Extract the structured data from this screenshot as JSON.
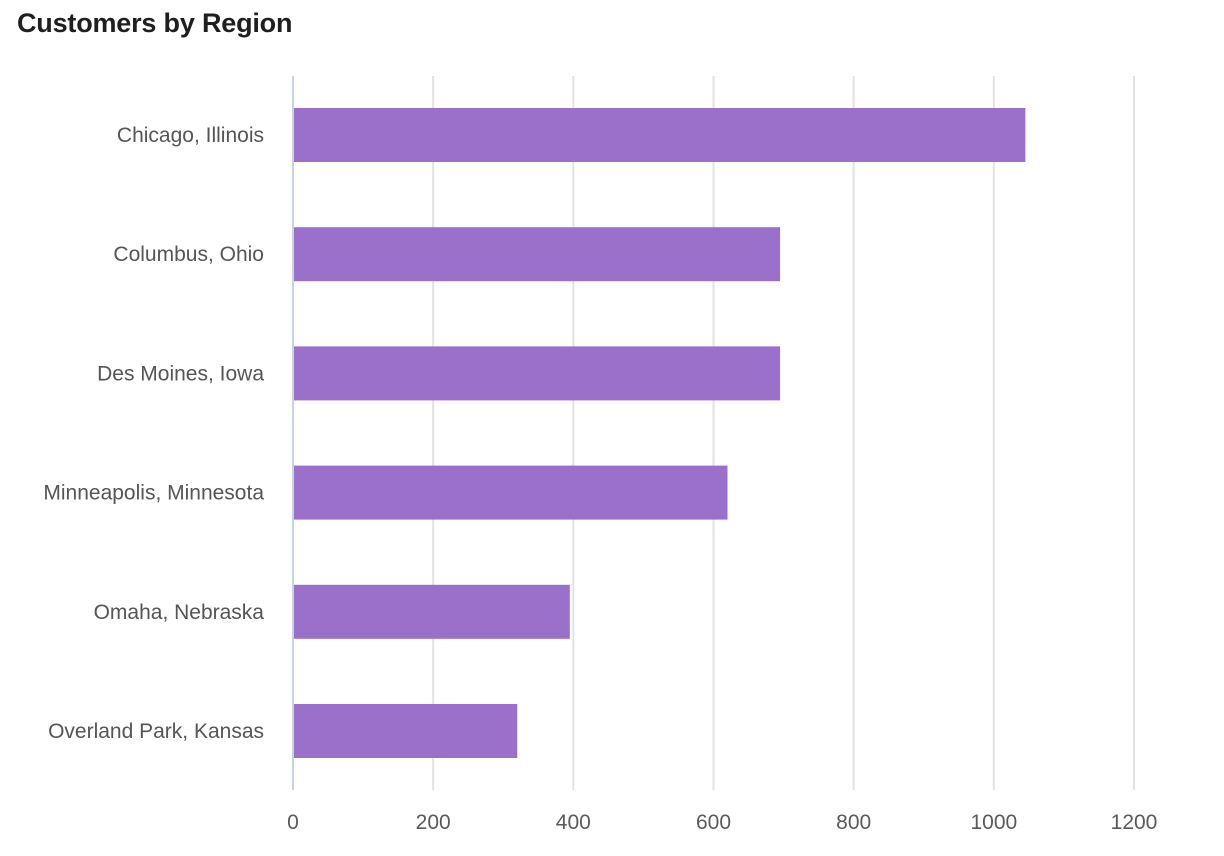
{
  "chart_data": {
    "type": "bar",
    "orientation": "horizontal",
    "title": "Customers by Region",
    "categories": [
      "Chicago, Illinois",
      "Columbus, Ohio",
      "Des Moines, Iowa",
      "Minneapolis, Minnesota",
      "Omaha, Nebraska",
      "Overland Park, Kansas"
    ],
    "values": [
      1045,
      695,
      695,
      620,
      395,
      320
    ],
    "xlim": [
      0,
      1200
    ],
    "xticks": [
      0,
      200,
      400,
      600,
      800,
      1000,
      1200
    ],
    "grid": "vertical",
    "legend": "none",
    "colors": {
      "bar": "#9b70cb",
      "grid": "#e2e2e2",
      "axis": "#c8d2e0"
    }
  }
}
